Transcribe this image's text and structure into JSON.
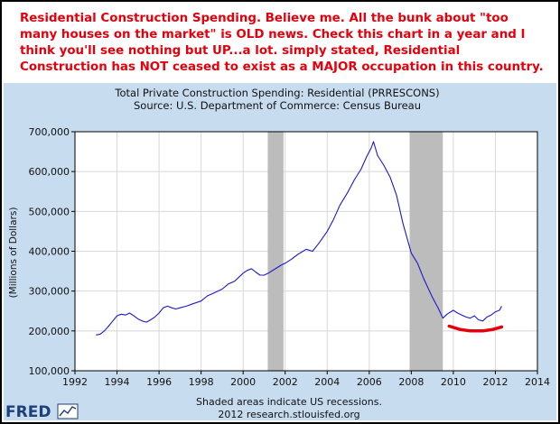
{
  "annotation": {
    "text": "Residential Construction Spending. Believe me. All the bunk about \"too many houses on the market\" is OLD news. Check this chart in a year and I think you'll see nothing but UP...a lot. simply stated, Residential Construction has NOT ceased to exist as a MAJOR occupation in this country.",
    "color": "#e4000c"
  },
  "chart_data": {
    "type": "line",
    "title": "Total Private Construction Spending: Residential (PRRESCONS)",
    "subtitle": "Source: U.S. Department of Commerce: Census Bureau",
    "ylabel": "(Millions of Dollars)",
    "xlabel": "",
    "xlim": [
      1992,
      2014
    ],
    "ylim": [
      100000,
      700000
    ],
    "x_ticks": [
      1992,
      1994,
      1996,
      1998,
      2000,
      2002,
      2004,
      2006,
      2008,
      2010,
      2012,
      2014
    ],
    "x_tick_labels": [
      "1992",
      "1994",
      "1996",
      "1998",
      "2000",
      "2002",
      "2004",
      "2006",
      "2008",
      "2010",
      "2012",
      "2014"
    ],
    "y_ticks": [
      100000,
      200000,
      300000,
      400000,
      500000,
      600000,
      700000
    ],
    "y_tick_labels": [
      "100,000",
      "200,000",
      "300,000",
      "400,000",
      "500,000",
      "600,000",
      "700,000"
    ],
    "grid": true,
    "series": [
      {
        "color": "#1a1acc",
        "x": [
          1993.0,
          1993.2,
          1993.4,
          1993.6,
          1993.8,
          1994.0,
          1994.2,
          1994.4,
          1994.6,
          1994.8,
          1995.0,
          1995.2,
          1995.4,
          1995.6,
          1995.8,
          1996.0,
          1996.2,
          1996.4,
          1996.6,
          1996.8,
          1997.0,
          1997.3,
          1997.6,
          1998.0,
          1998.3,
          1998.6,
          1999.0,
          1999.3,
          1999.6,
          2000.0,
          2000.2,
          2000.4,
          2000.6,
          2000.8,
          2001.0,
          2001.2,
          2001.5,
          2001.8,
          2002.0,
          2002.3,
          2002.6,
          2003.0,
          2003.3,
          2003.6,
          2004.0,
          2004.3,
          2004.6,
          2005.0,
          2005.3,
          2005.6,
          2005.9,
          2006.1,
          2006.2,
          2006.4,
          2006.7,
          2007.0,
          2007.3,
          2007.6,
          2008.0,
          2008.3,
          2008.6,
          2009.0,
          2009.3,
          2009.5,
          2009.7,
          2010.0,
          2010.2,
          2010.4,
          2010.6,
          2010.8,
          2011.0,
          2011.2,
          2011.4,
          2011.6,
          2011.8,
          2012.0,
          2012.2,
          2012.3
        ],
        "values": [
          190000,
          192000,
          200000,
          212000,
          225000,
          238000,
          242000,
          240000,
          245000,
          238000,
          230000,
          225000,
          222000,
          228000,
          235000,
          245000,
          258000,
          262000,
          258000,
          255000,
          258000,
          262000,
          268000,
          275000,
          288000,
          295000,
          305000,
          318000,
          325000,
          345000,
          352000,
          356000,
          348000,
          340000,
          340000,
          345000,
          355000,
          365000,
          370000,
          380000,
          392000,
          405000,
          400000,
          420000,
          450000,
          480000,
          515000,
          550000,
          580000,
          605000,
          640000,
          660000,
          675000,
          640000,
          615000,
          585000,
          540000,
          470000,
          395000,
          370000,
          330000,
          285000,
          255000,
          232000,
          242000,
          252000,
          245000,
          240000,
          235000,
          232000,
          238000,
          228000,
          225000,
          235000,
          240000,
          248000,
          252000,
          262000
        ]
      }
    ],
    "recessions": [
      [
        2001.17,
        2001.92
      ],
      [
        2007.92,
        2009.5
      ]
    ],
    "highlight": {
      "color": "#e4000c",
      "x": [
        2009.8,
        2010.3,
        2010.8,
        2011.4,
        2011.9,
        2012.3
      ],
      "values": [
        212000,
        204000,
        200000,
        200000,
        204000,
        210000
      ]
    },
    "footer_note": "Shaded areas indicate US recessions.",
    "footer_source": "2012 research.stlouisfed.org"
  },
  "logo": {
    "text": "FRED"
  }
}
